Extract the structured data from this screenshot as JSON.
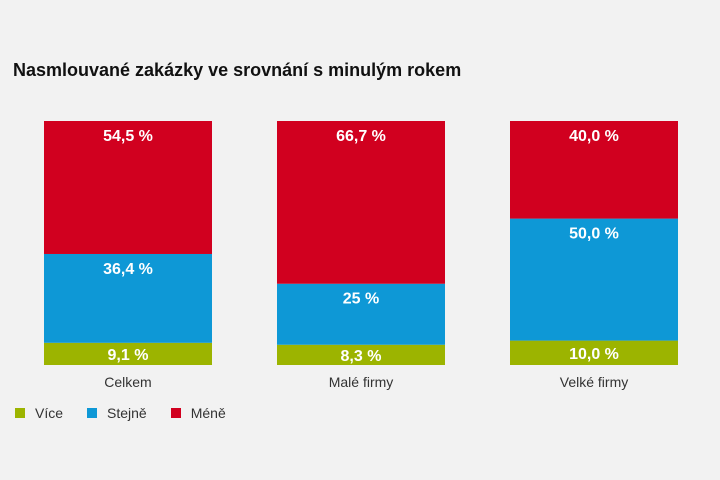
{
  "chart_data": {
    "type": "bar",
    "stacked": true,
    "percent": true,
    "title": "Nasmlouvané zakázky ve srovnání s minulým rokem",
    "categories": [
      "Celkem",
      "Malé firmy",
      "Velké firmy"
    ],
    "series": [
      {
        "name": "Více",
        "color": "#9cb400",
        "values": [
          9.1,
          8.3,
          10.0
        ],
        "labels": [
          "9,1 %",
          "8,3 %",
          "10,0 %"
        ]
      },
      {
        "name": "Stejně",
        "color": "#0e98d6",
        "values": [
          36.4,
          25,
          50.0
        ],
        "labels": [
          "36,4 %",
          "25 %",
          "50,0 %"
        ]
      },
      {
        "name": "Méně",
        "color": "#d1001f",
        "values": [
          54.5,
          66.7,
          40.0
        ],
        "labels": [
          "54,5 %",
          "66,7 %",
          "40,0 %"
        ]
      }
    ],
    "ylim": [
      0,
      100
    ],
    "grid": false,
    "legend": "bottom-left"
  }
}
